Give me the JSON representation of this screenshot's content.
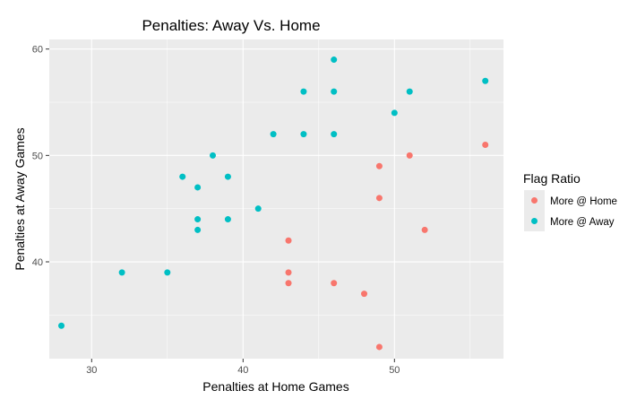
{
  "chart_data": {
    "type": "scatter",
    "title": "Penalties: Away Vs. Home",
    "xlabel": "Penalties at Home Games",
    "ylabel": "Penalties at Away Games",
    "xlim": [
      27.2,
      57.2
    ],
    "ylim": [
      30.9,
      60.9
    ],
    "x_major_ticks": [
      30,
      40,
      50
    ],
    "x_minor_ticks": [
      35,
      45,
      55
    ],
    "y_major_ticks": [
      40,
      50,
      60
    ],
    "y_minor_ticks": [
      35,
      45,
      55
    ],
    "grid": true,
    "legend": {
      "title": "Flag Ratio",
      "position": "right"
    },
    "series": [
      {
        "name": "More @ Home",
        "color": "#f8766d",
        "points": [
          {
            "x": 56,
            "y": 51
          },
          {
            "x": 51,
            "y": 50
          },
          {
            "x": 49,
            "y": 49
          },
          {
            "x": 49,
            "y": 46
          },
          {
            "x": 52,
            "y": 43
          },
          {
            "x": 43,
            "y": 42
          },
          {
            "x": 43,
            "y": 39
          },
          {
            "x": 43,
            "y": 38
          },
          {
            "x": 46,
            "y": 38
          },
          {
            "x": 48,
            "y": 37
          },
          {
            "x": 49,
            "y": 32
          }
        ]
      },
      {
        "name": "More @ Away",
        "color": "#00bfc4",
        "points": [
          {
            "x": 46,
            "y": 59
          },
          {
            "x": 56,
            "y": 57
          },
          {
            "x": 44,
            "y": 56
          },
          {
            "x": 46,
            "y": 56
          },
          {
            "x": 51,
            "y": 56
          },
          {
            "x": 50,
            "y": 54
          },
          {
            "x": 42,
            "y": 52
          },
          {
            "x": 44,
            "y": 52
          },
          {
            "x": 46,
            "y": 52
          },
          {
            "x": 38,
            "y": 50
          },
          {
            "x": 36,
            "y": 48
          },
          {
            "x": 39,
            "y": 48
          },
          {
            "x": 37,
            "y": 47
          },
          {
            "x": 41,
            "y": 45
          },
          {
            "x": 37,
            "y": 44
          },
          {
            "x": 39,
            "y": 44
          },
          {
            "x": 37,
            "y": 43
          },
          {
            "x": 32,
            "y": 39
          },
          {
            "x": 35,
            "y": 39
          },
          {
            "x": 28,
            "y": 34
          }
        ]
      }
    ]
  }
}
